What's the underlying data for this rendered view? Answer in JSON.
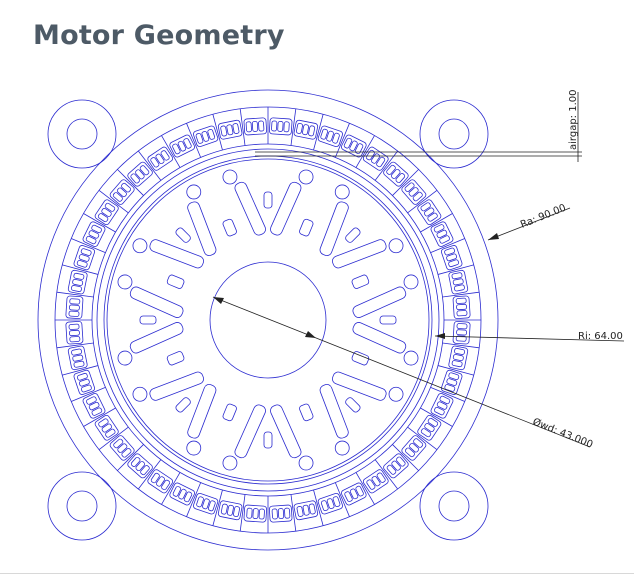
{
  "title": "Motor Geometry",
  "dimensions": {
    "airgap": "airgap: 1.00",
    "ra": "Ra: 90.00",
    "ri": "Ri: 64.00",
    "shaft": "Øwd: 43.000"
  },
  "geometry": {
    "stator_slots": 48,
    "rotor_poles": 8
  },
  "colors": {
    "line": "#2b2bd0",
    "title": "#4d5a66",
    "dimension": "#222222"
  }
}
